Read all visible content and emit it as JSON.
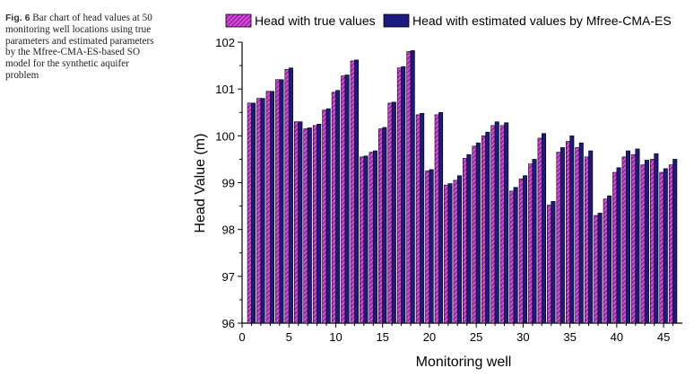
{
  "caption": {
    "fig_label": "Fig. 6",
    "text": "Bar chart of head values at 50 monitoring well locations using true parameters and estimated parameters by the Mfree-CMA-ES-based SO model for the synthetic aquifer problem"
  },
  "chart_data": {
    "type": "bar",
    "title": "",
    "xlabel": "Monitoring well",
    "ylabel": "Head Value (m)",
    "ylim": [
      96,
      102
    ],
    "xlim": [
      0,
      47
    ],
    "yticks": [
      96,
      97,
      98,
      99,
      100,
      101,
      102
    ],
    "xticks": [
      0,
      5,
      10,
      15,
      20,
      25,
      30,
      35,
      40,
      45
    ],
    "legend_position": "top",
    "categories": [
      1,
      2,
      3,
      4,
      5,
      6,
      7,
      8,
      9,
      10,
      11,
      12,
      13,
      14,
      15,
      16,
      17,
      18,
      19,
      20,
      21,
      22,
      23,
      24,
      25,
      26,
      27,
      28,
      29,
      30,
      31,
      32,
      33,
      34,
      35,
      36,
      37,
      38,
      39,
      40,
      41,
      42,
      43,
      44,
      45,
      46
    ],
    "series": [
      {
        "name": "Head with true values",
        "color": "#e040e8",
        "pattern": "hatch",
        "values": [
          100.7,
          100.8,
          100.95,
          101.2,
          101.42,
          100.3,
          100.15,
          100.22,
          100.55,
          100.93,
          101.28,
          101.6,
          99.55,
          99.65,
          100.15,
          100.7,
          101.45,
          101.8,
          100.45,
          99.25,
          100.45,
          98.95,
          99.05,
          99.52,
          99.78,
          100.0,
          100.22,
          100.22,
          98.82,
          99.08,
          99.4,
          99.95,
          98.52,
          99.65,
          99.88,
          99.75,
          99.55,
          98.3,
          98.65,
          99.22,
          99.55,
          99.6,
          99.38,
          99.5,
          99.22,
          99.38
        ]
      },
      {
        "name": "Head with estimated values by Mfree-CMA-ES",
        "color": "#1a1a80",
        "pattern": "solid",
        "values": [
          100.7,
          100.8,
          100.95,
          101.2,
          101.45,
          100.3,
          100.17,
          100.25,
          100.58,
          100.97,
          101.3,
          101.62,
          99.57,
          99.68,
          100.18,
          100.72,
          101.48,
          101.82,
          100.48,
          99.28,
          100.5,
          98.98,
          99.15,
          99.6,
          99.85,
          100.08,
          100.3,
          100.28,
          98.9,
          99.15,
          99.5,
          100.05,
          98.6,
          99.75,
          100.0,
          99.85,
          99.68,
          98.35,
          98.72,
          99.32,
          99.68,
          99.72,
          99.48,
          99.62,
          99.3,
          99.5
        ]
      }
    ]
  }
}
